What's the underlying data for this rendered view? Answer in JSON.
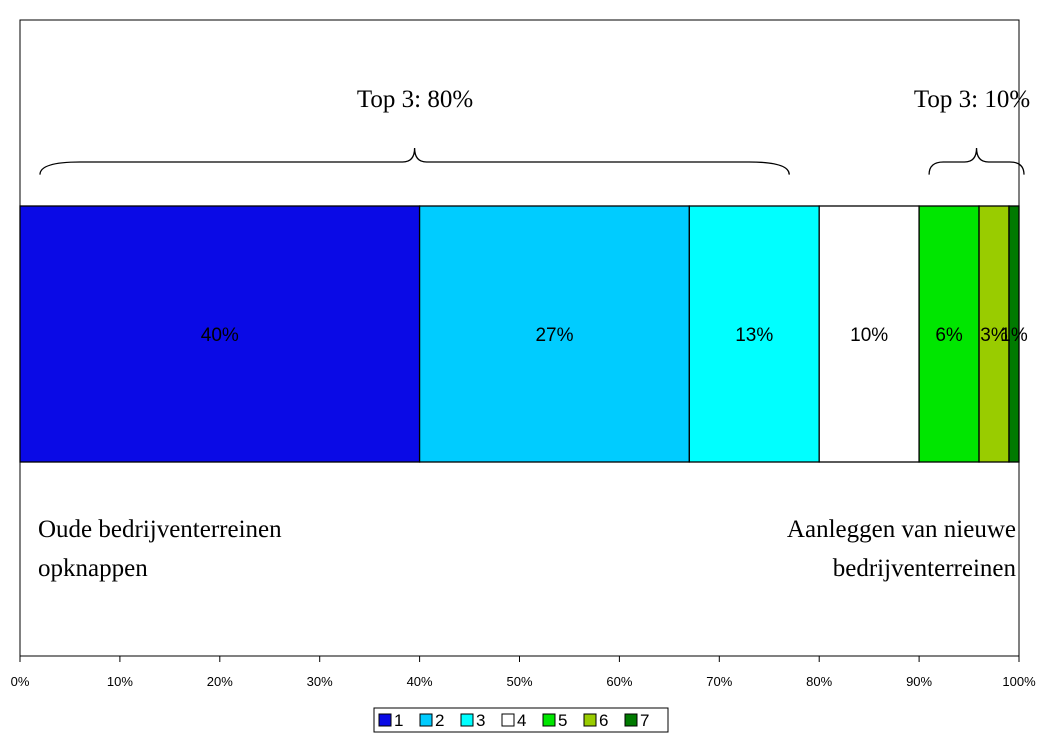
{
  "chart_data": {
    "type": "bar",
    "orientation": "horizontal",
    "stacked": true,
    "categories": [
      ""
    ],
    "series": [
      {
        "name": "1",
        "value": 40,
        "label": "40%",
        "color": "#0a0ae6"
      },
      {
        "name": "2",
        "value": 27,
        "label": "27%",
        "color": "#00ccff"
      },
      {
        "name": "3",
        "value": 13,
        "label": "13%",
        "color": "#00ffff"
      },
      {
        "name": "4",
        "value": 10,
        "label": "10%",
        "color": "#ffffff"
      },
      {
        "name": "5",
        "value": 6,
        "label": "6%",
        "color": "#00e600"
      },
      {
        "name": "6",
        "value": 3,
        "label": "3%",
        "color": "#99cc00"
      },
      {
        "name": "7",
        "value": 1,
        "label": "1%",
        "color": "#007a00"
      }
    ],
    "xlim": [
      0,
      100
    ],
    "x_ticks": [
      0,
      10,
      20,
      30,
      40,
      50,
      60,
      70,
      80,
      90,
      100
    ],
    "x_tick_labels": [
      "0%",
      "10%",
      "20%",
      "30%",
      "40%",
      "50%",
      "60%",
      "70%",
      "80%",
      "90%",
      "100%"
    ],
    "grid": false,
    "legend_position": "bottom",
    "annotations": {
      "left_group": {
        "label": "Top 3: 80%",
        "from": 2,
        "to": 77
      },
      "right_group": {
        "label": "Top 3: 10%",
        "from": 91,
        "to": 100.5
      },
      "left_text": [
        "Oude bedrijventerreinen",
        "opknappen"
      ],
      "right_text": [
        "Aanleggen van nieuwe",
        "bedrijventerreinen"
      ]
    }
  }
}
